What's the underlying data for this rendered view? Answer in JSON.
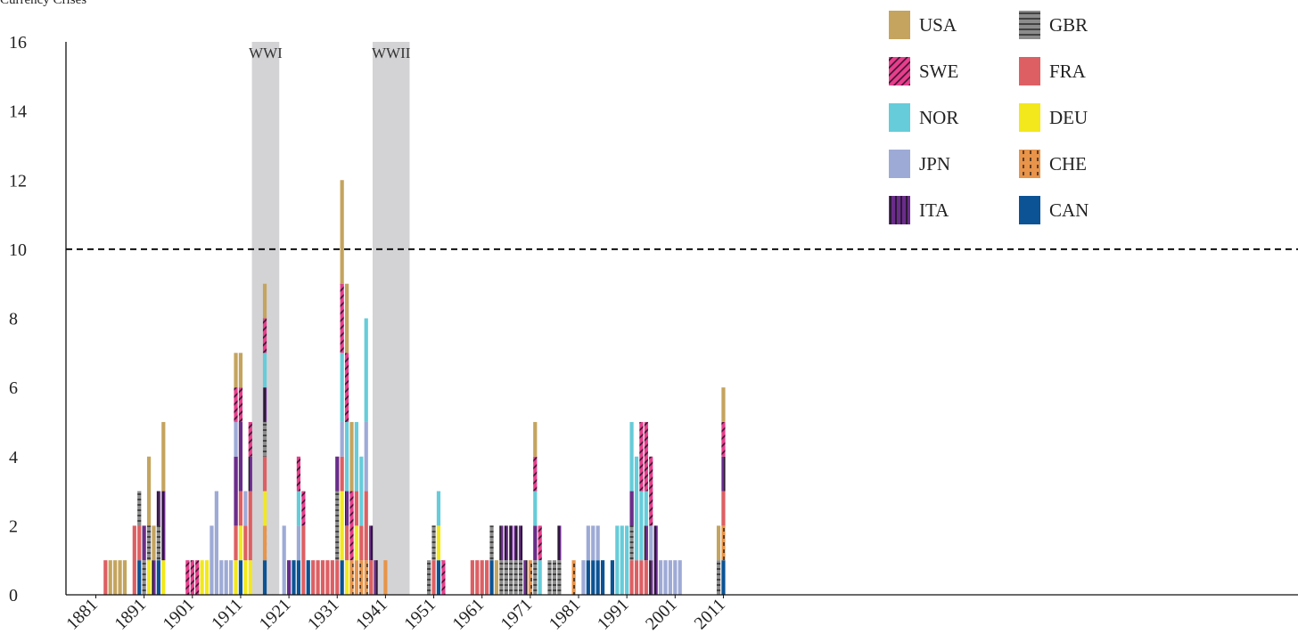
{
  "chart_data": {
    "type": "bar",
    "stacked": true,
    "ylabel": "Currency Crises",
    "ylim": [
      0,
      16
    ],
    "yticks": [
      0,
      2,
      4,
      6,
      8,
      10,
      12,
      14,
      16
    ],
    "xlim": [
      1880,
      2015
    ],
    "xticks": [
      1881,
      1891,
      1901,
      1911,
      1921,
      1931,
      1941,
      1951,
      1961,
      1971,
      1981,
      1991,
      2001,
      2011
    ],
    "reference_line": 10,
    "annotations": [
      {
        "label": "WWI",
        "start": 1914,
        "end": 1918
      },
      {
        "label": "WWII",
        "start": 1939,
        "end": 1945
      }
    ],
    "legend_position": "top-right",
    "series": [
      {
        "name": "CAN",
        "color": "#0b5394",
        "pattern": "solid",
        "data": {
          "1890": 1,
          "1894": 1,
          "1911": 1,
          "1916": 1,
          "1922": 1,
          "1923": 1,
          "1925": 1,
          "1932": 1,
          "1952": 1,
          "1963": 1,
          "1983": 1,
          "1984": 1,
          "1985": 1,
          "1986": 1,
          "1988": 1,
          "2011": 1
        }
      },
      {
        "name": "CHE",
        "color": "#e8944a",
        "pattern": "dash",
        "data": {
          "1916": 1,
          "1934": 1,
          "1935": 1,
          "1936": 1,
          "1937": 1,
          "1941": 1,
          "1971": 1,
          "1980": 1,
          "2011": 1
        }
      },
      {
        "name": "DEU",
        "color": "#f2e81c",
        "pattern": "solid",
        "data": {
          "1892": 1,
          "1895": 1,
          "1903": 1,
          "1904": 1,
          "1910": 1,
          "1911": 1,
          "1912": 1,
          "1913": 1,
          "1916": 1,
          "1932": 2,
          "1933": 1,
          "1935": 1,
          "1952": 1
        }
      },
      {
        "name": "FRA",
        "color": "#dd5f63",
        "pattern": "solid",
        "data": {
          "1883": 1,
          "1889": 2,
          "1890": 1,
          "1910": 1,
          "1911": 1,
          "1912": 1,
          "1913": 2,
          "1916": 1,
          "1924": 2,
          "1926": 1,
          "1927": 1,
          "1928": 1,
          "1929": 1,
          "1930": 1,
          "1931": 1,
          "1932": 1,
          "1933": 1,
          "1935": 1,
          "1936": 1,
          "1937": 2,
          "1938": 1,
          "1951": 1,
          "1959": 1,
          "1960": 1,
          "1961": 1,
          "1962": 1,
          "1992": 1,
          "1993": 1,
          "1994": 1,
          "1995": 1,
          "2011": 1
        }
      },
      {
        "name": "GBR",
        "color": "#8c8c8c",
        "pattern": "hline",
        "data": {
          "1890": 1,
          "1891": 1,
          "1892": 1,
          "1894": 1,
          "1916": 1,
          "1931": 2,
          "1950": 1,
          "1951": 1,
          "1963": 1,
          "1965": 1,
          "1966": 1,
          "1967": 1,
          "1968": 1,
          "1969": 1,
          "1972": 1,
          "1975": 1,
          "1976": 1,
          "1977": 1,
          "1992": 1,
          "2010": 1
        }
      },
      {
        "name": "ITA",
        "color": "#6a2c8a",
        "pattern": "vline",
        "data": {
          "1891": 1,
          "1893": 1,
          "1894": 1,
          "1895": 2,
          "1910": 2,
          "1911": 2,
          "1913": 1,
          "1916": 1,
          "1921": 1,
          "1931": 1,
          "1933": 1,
          "1938": 1,
          "1939": 1,
          "1965": 1,
          "1966": 1,
          "1967": 1,
          "1968": 1,
          "1969": 1,
          "1970": 1,
          "1972": 1,
          "1977": 1,
          "1992": 1,
          "1995": 1,
          "1996": 1,
          "1997": 2,
          "2011": 1
        }
      },
      {
        "name": "JPN",
        "color": "#9eaad6",
        "pattern": "solid",
        "data": {
          "1905": 2,
          "1906": 3,
          "1907": 1,
          "1908": 1,
          "1909": 1,
          "1910": 1,
          "1912": 1,
          "1920": 2,
          "1923": 1,
          "1932": 1,
          "1937": 2,
          "1982": 1,
          "1983": 1,
          "1984": 1,
          "1985": 1,
          "1998": 1,
          "1999": 1,
          "2000": 1,
          "2001": 1,
          "2002": 1,
          "1996": 1
        }
      },
      {
        "name": "NOR",
        "color": "#66ccd9",
        "pattern": "solid",
        "data": {
          "1916": 1,
          "1923": 1,
          "1932": 2,
          "1933": 2,
          "1935": 2,
          "1936": 2,
          "1937": 3,
          "1952": 1,
          "1972": 1,
          "1973": 1,
          "1989": 2,
          "1990": 2,
          "1991": 2,
          "1992": 2,
          "1993": 3,
          "1994": 2,
          "1995": 1
        }
      },
      {
        "name": "SWE",
        "color": "#e83e8c",
        "pattern": "diag",
        "data": {
          "1900": 1,
          "1901": 1,
          "1902": 1,
          "1910": 1,
          "1911": 1,
          "1913": 1,
          "1916": 1,
          "1923": 1,
          "1924": 1,
          "1932": 2,
          "1933": 2,
          "1934": 2,
          "1953": 1,
          "1972": 1,
          "1973": 1,
          "1994": 2,
          "1995": 2,
          "1996": 2,
          "2011": 1
        }
      },
      {
        "name": "USA",
        "color": "#c4a45e",
        "pattern": "solid",
        "data": {
          "1884": 1,
          "1885": 1,
          "1886": 1,
          "1887": 1,
          "1892": 2,
          "1893": 1,
          "1895": 2,
          "1910": 1,
          "1911": 1,
          "1916": 1,
          "1932": 3,
          "1933": 2,
          "1934": 2,
          "1964": 1,
          "1972": 1,
          "2010": 1,
          "2011": 1
        }
      }
    ]
  },
  "legend_layout": [
    [
      "USA",
      "GBR"
    ],
    [
      "SWE",
      "FRA"
    ],
    [
      "NOR",
      "DEU"
    ],
    [
      "JPN",
      "CHE"
    ],
    [
      "ITA",
      "CAN"
    ]
  ]
}
